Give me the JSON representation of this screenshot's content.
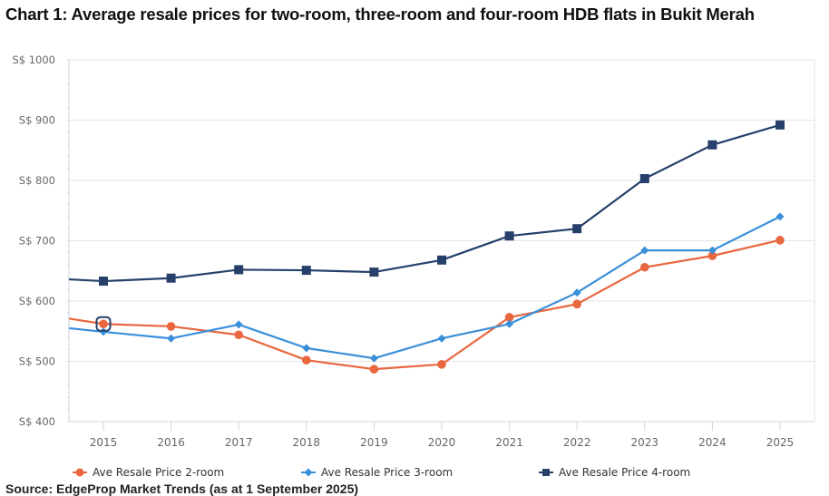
{
  "chart_data": {
    "type": "line",
    "title": "Chart 1: Average resale prices for two-room, three-room and four-room HDB flats in Bukit Merah",
    "xlabel": "",
    "ylabel": "",
    "x": [
      "2015",
      "2016",
      "2017",
      "2018",
      "2019",
      "2020",
      "2021",
      "2022",
      "2023",
      "2024",
      "2025"
    ],
    "ylim": [
      400,
      1000
    ],
    "yticks": [
      400,
      500,
      600,
      700,
      800,
      900,
      1000
    ],
    "ytick_labels": [
      "S$ 400",
      "S$ 500",
      "S$ 600",
      "S$ 700",
      "S$ 800",
      "S$ 900",
      "S$ 1000"
    ],
    "grid": true,
    "legend_position": "bottom",
    "series": [
      {
        "name": "Ave Resale Price 2-room",
        "color": "#e8673f",
        "marker": "circle",
        "values": [
          562,
          558,
          544,
          502,
          487,
          495,
          573,
          595,
          656,
          675,
          701
        ],
        "lead_in_value": 571
      },
      {
        "name": "Ave Resale Price 3-room",
        "color": "#3a8fd9",
        "marker": "diamond",
        "values": [
          549,
          538,
          561,
          522,
          505,
          538,
          562,
          614,
          684,
          684,
          740
        ],
        "lead_in_value": 555
      },
      {
        "name": "Ave Resale Price 4-room",
        "color": "#26406b",
        "marker": "square",
        "values": [
          633,
          638,
          652,
          651,
          648,
          668,
          708,
          720,
          803,
          859,
          892
        ],
        "lead_in_value": 636
      }
    ],
    "highlighted_point": {
      "series": "Ave Resale Price 2-room",
      "x": "2015"
    }
  },
  "footer": {
    "source_text": "Source: EdgeProp Market Trends (as at 1 September 2025)"
  }
}
